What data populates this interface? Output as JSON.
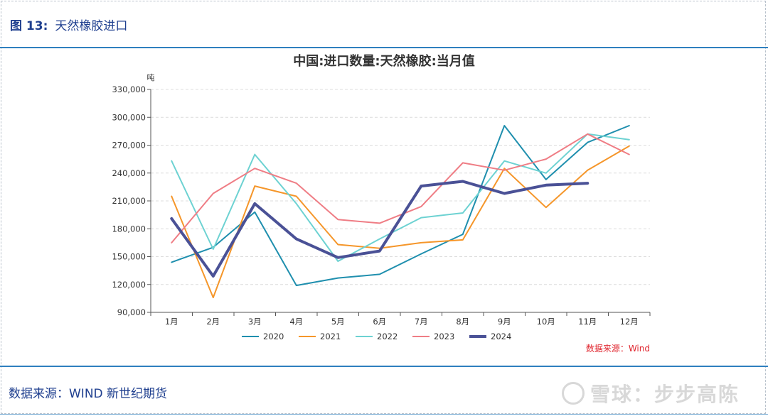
{
  "header": {
    "figure_label": "图 13:",
    "figure_title": "天然橡胶进口"
  },
  "footer": {
    "source": "数据来源：WIND 新世纪期货"
  },
  "watermark": {
    "text": "雪球：步步高陈",
    "icon": "snowball-logo-icon"
  },
  "chart_data": {
    "type": "line",
    "title": "中国:进口数量:天然橡胶:当月值",
    "unit": "吨",
    "source_note": "数据来源：Wind",
    "categories": [
      "1月",
      "2月",
      "3月",
      "4月",
      "5月",
      "6月",
      "7月",
      "8月",
      "9月",
      "10月",
      "11月",
      "12月"
    ],
    "ylim": [
      90000,
      330000
    ],
    "yticks": [
      90000,
      120000,
      150000,
      180000,
      210000,
      240000,
      270000,
      300000,
      330000
    ],
    "ytick_labels": [
      "90,000",
      "120,000",
      "150,000",
      "180,000",
      "210,000",
      "240,000",
      "270,000",
      "300,000",
      "330,000"
    ],
    "grid": "horizontal-dashed",
    "legend": "bottom-center",
    "series": [
      {
        "name": "2020",
        "color": "#1f8fae",
        "width": 2,
        "values": [
          144000,
          160000,
          198000,
          119000,
          127000,
          131000,
          153000,
          174000,
          291000,
          233000,
          273000,
          291000
        ]
      },
      {
        "name": "2021",
        "color": "#f5962a",
        "width": 2,
        "values": [
          215000,
          106000,
          226000,
          215000,
          163000,
          159000,
          165000,
          168000,
          245000,
          203000,
          243000,
          269000
        ]
      },
      {
        "name": "2022",
        "color": "#6dd2d2",
        "width": 2,
        "values": [
          253000,
          158000,
          260000,
          207000,
          145000,
          169000,
          192000,
          197000,
          253000,
          240000,
          282000,
          276000
        ]
      },
      {
        "name": "2023",
        "color": "#ef7d85",
        "width": 2,
        "values": [
          165000,
          218000,
          245000,
          229000,
          190000,
          186000,
          204000,
          251000,
          243000,
          255000,
          282000,
          260000
        ]
      },
      {
        "name": "2024",
        "color": "#4a5196",
        "width": 4,
        "values": [
          191000,
          129000,
          207000,
          169000,
          149000,
          156000,
          226000,
          231000,
          218000,
          227000,
          229000,
          null
        ]
      }
    ]
  }
}
